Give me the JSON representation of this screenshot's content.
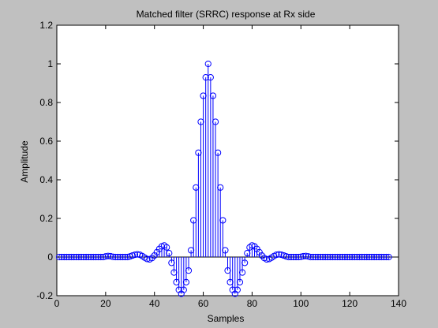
{
  "chart_data": {
    "type": "stem",
    "title": "Matched filter (SRRC) response at Rx side",
    "xlabel": "Samples",
    "ylabel": "Amplitude",
    "xlim": [
      0,
      140
    ],
    "ylim": [
      -0.2,
      1.2
    ],
    "xticks": [
      0,
      20,
      40,
      60,
      80,
      100,
      120,
      140
    ],
    "yticks": [
      -0.2,
      0,
      0.2,
      0.4,
      0.6,
      0.8,
      1,
      1.2
    ],
    "series_color": "#0000ff",
    "background": "#ffffff",
    "figure_background": "#c0c0c0",
    "grid": false,
    "x": [
      1,
      2,
      3,
      4,
      5,
      6,
      7,
      8,
      9,
      10,
      11,
      12,
      13,
      14,
      15,
      16,
      17,
      18,
      19,
      20,
      21,
      22,
      23,
      24,
      25,
      26,
      27,
      28,
      29,
      30,
      31,
      32,
      33,
      34,
      35,
      36,
      37,
      38,
      39,
      40,
      41,
      42,
      43,
      44,
      45,
      46,
      47,
      48,
      49,
      50,
      51,
      52,
      53,
      54,
      55,
      56,
      57,
      58,
      59,
      60,
      61,
      62,
      63,
      64,
      65,
      66,
      67,
      68,
      69,
      70,
      71,
      72,
      73,
      74,
      75,
      76,
      77,
      78,
      79,
      80,
      81,
      82,
      83,
      84,
      85,
      86,
      87,
      88,
      89,
      90,
      91,
      92,
      93,
      94,
      95,
      96,
      97,
      98,
      99,
      100,
      101,
      102,
      103,
      104,
      105,
      106,
      107,
      108,
      109,
      110,
      111,
      112,
      113,
      114,
      115,
      116,
      117,
      118,
      119,
      120,
      121,
      122,
      123,
      124,
      125,
      126,
      127,
      128,
      129,
      130,
      131,
      132,
      133,
      134,
      135,
      136
    ],
    "values": [
      0,
      0,
      0,
      0,
      0,
      0,
      0,
      0,
      0,
      0,
      0,
      0,
      0,
      0,
      0,
      0,
      0,
      0,
      0,
      0.003,
      0.005,
      0.004,
      0.001,
      0,
      0,
      0,
      0,
      0,
      0,
      0.003,
      0.008,
      0.012,
      0.014,
      0.012,
      0.005,
      -0.003,
      -0.01,
      -0.012,
      -0.005,
      0.008,
      0.025,
      0.042,
      0.055,
      0.06,
      0.05,
      0.02,
      -0.03,
      -0.08,
      -0.13,
      -0.17,
      -0.19,
      -0.17,
      -0.13,
      -0.07,
      0.035,
      0.19,
      0.36,
      0.54,
      0.7,
      0.835,
      0.93,
      1.0,
      0.93,
      0.835,
      0.7,
      0.54,
      0.36,
      0.19,
      0.035,
      -0.07,
      -0.13,
      -0.17,
      -0.19,
      -0.17,
      -0.13,
      -0.08,
      -0.03,
      0.02,
      0.05,
      0.06,
      0.055,
      0.042,
      0.025,
      0.008,
      -0.005,
      -0.012,
      -0.01,
      -0.003,
      0.005,
      0.012,
      0.014,
      0.012,
      0.008,
      0.003,
      0,
      0,
      0,
      0,
      0,
      0.001,
      0.004,
      0.005,
      0.003,
      0,
      0,
      0,
      0,
      0,
      0,
      0,
      0,
      0,
      0,
      0,
      0,
      0,
      0,
      0,
      0,
      0,
      0,
      0,
      0,
      0,
      0,
      0,
      0,
      0,
      0,
      0,
      0,
      0,
      0,
      0,
      0,
      0
    ]
  }
}
